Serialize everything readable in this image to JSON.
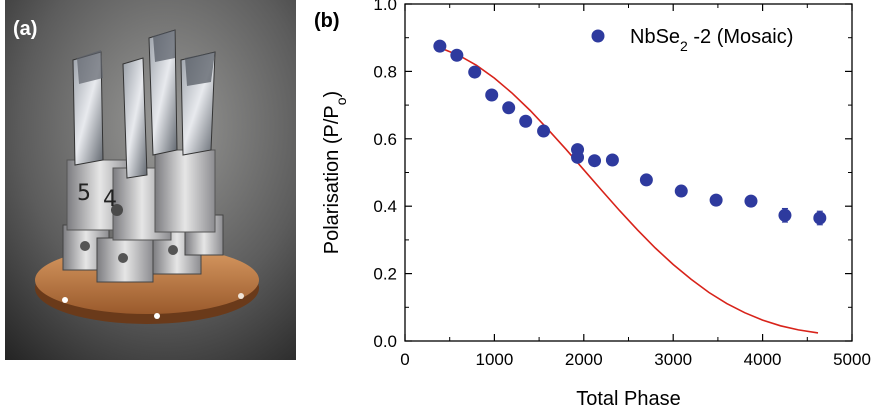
{
  "panel_a": {
    "label": "(a)",
    "photo": "sample-mount-photo"
  },
  "panel_b": {
    "label": "(b)"
  },
  "chart_data": {
    "type": "scatter",
    "title": "",
    "xlabel": "Total Phase",
    "ylabel": "Polarisation (P/P",
    "ylabel_sub": "o",
    "ylabel_close": ")",
    "xlim": [
      0,
      5000
    ],
    "ylim": [
      0.0,
      1.0
    ],
    "x_ticks": [
      0,
      1000,
      2000,
      3000,
      4000,
      5000
    ],
    "y_ticks": [
      0.0,
      0.2,
      0.4,
      0.6,
      0.8,
      1.0
    ],
    "y_tick_labels": [
      "0.0",
      "0.2",
      "0.4",
      "0.6",
      "0.8",
      "1.0"
    ],
    "grid": false,
    "legend_position": "top-right",
    "colors": {
      "points": "#2e3a9e",
      "curve": "#d8231a",
      "axis": "#000000"
    },
    "series": [
      {
        "name": "NbSe",
        "name_sub": "2",
        "name_suffix": " -2 (Mosaic)",
        "kind": "points",
        "x": [
          390,
          580,
          780,
          970,
          1160,
          1350,
          1550,
          1930,
          1930,
          2120,
          2320,
          2700,
          3090,
          3480,
          3870,
          4250,
          4640
        ],
        "y": [
          0.875,
          0.848,
          0.798,
          0.73,
          0.692,
          0.652,
          0.623,
          0.568,
          0.545,
          0.535,
          0.537,
          0.478,
          0.445,
          0.418,
          0.415,
          0.373,
          0.365
        ],
        "yerr": [
          0.01,
          0.01,
          0.01,
          0.01,
          0.01,
          0.01,
          0.01,
          0.01,
          0.01,
          0.01,
          0.01,
          0.01,
          0.01,
          0.01,
          0.015,
          0.02,
          0.02
        ]
      },
      {
        "kind": "curve",
        "x": [
          390,
          600,
          800,
          1000,
          1200,
          1400,
          1600,
          1800,
          2000,
          2200,
          2400,
          2600,
          2800,
          3000,
          3200,
          3400,
          3600,
          3800,
          4000,
          4200,
          4400,
          4620
        ],
        "y": [
          0.87,
          0.848,
          0.818,
          0.78,
          0.735,
          0.684,
          0.628,
          0.569,
          0.508,
          0.447,
          0.387,
          0.33,
          0.276,
          0.227,
          0.183,
          0.144,
          0.111,
          0.084,
          0.062,
          0.045,
          0.033,
          0.024
        ]
      }
    ]
  }
}
